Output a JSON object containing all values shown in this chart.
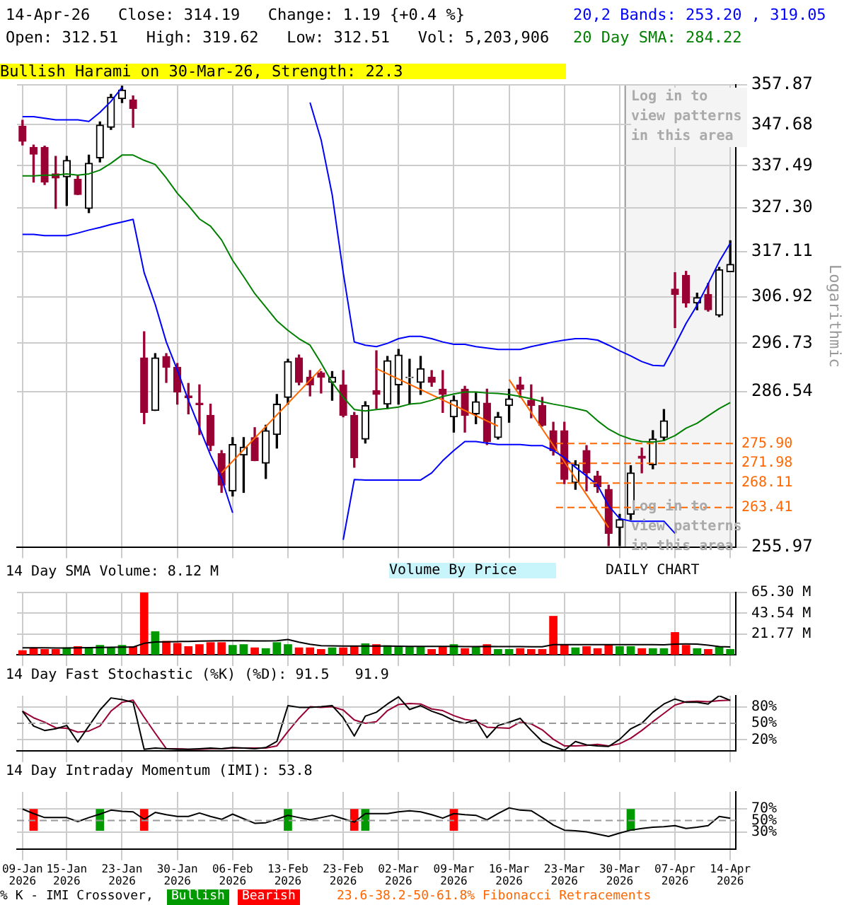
{
  "chart_data": [
    {
      "type": "candlestick",
      "title": "14-Apr-26   Close: 314.19   Change: 1.19 {+0.4 %}",
      "subtitle": "Open: 312.51   High: 319.62   Low: 312.51   Vol: 5,203,906",
      "ylabel": "Logarithmic",
      "categories": [
        "09-Jan 2026",
        null,
        null,
        null,
        "15-Jan 2026",
        null,
        null,
        null,
        null,
        "23-Jan 2026",
        null,
        null,
        null,
        null,
        "30-Jan 2026",
        null,
        null,
        null,
        null,
        "06-Feb 2026",
        null,
        null,
        null,
        null,
        "13-Feb 2026",
        null,
        null,
        null,
        null,
        "23-Feb 2026",
        null,
        null,
        null,
        null,
        "02-Mar 2026",
        null,
        null,
        null,
        null,
        "09-Mar 2026",
        null,
        null,
        null,
        null,
        "16-Mar 2026",
        null,
        null,
        null,
        null,
        "23-Mar 2026",
        null,
        null,
        null,
        null,
        "30-Mar 2026",
        null,
        null,
        null,
        null,
        "07-Apr 2026",
        null,
        null,
        null,
        null,
        "14-Apr 2026"
      ],
      "ohlc": [
        [
          347.3,
          348.8,
          342.6,
          343.5
        ],
        [
          342.0,
          342.6,
          333.5,
          340.3
        ],
        [
          342.0,
          342.3,
          332.9,
          333.5
        ],
        [
          335.5,
          339.8,
          327.2,
          334.5
        ],
        [
          334.8,
          339.8,
          327.9,
          338.8
        ],
        [
          334.2,
          335.2,
          330.5,
          330.5
        ],
        [
          327.2,
          340.1,
          326.2,
          338.1
        ],
        [
          339.4,
          348.4,
          338.4,
          347.6
        ],
        [
          347.0,
          355.4,
          346.5,
          354.7
        ],
        [
          354.3,
          357.5,
          353.3,
          356.5
        ],
        [
          354.0,
          355.0,
          347.0,
          351.8
        ],
        [
          293.6,
          299.2,
          279.9,
          282.2
        ],
        [
          282.6,
          294.5,
          282.6,
          293.6
        ],
        [
          293.9,
          294.5,
          288.4,
          291.6
        ],
        [
          291.6,
          292.4,
          283.9,
          286.4
        ],
        [
          285.6,
          288.2,
          281.9,
          285.2
        ],
        [
          284.1,
          287.9,
          277.7,
          283.8
        ],
        [
          281.6,
          283.9,
          274.5,
          275.5
        ],
        [
          273.9,
          274.5,
          266.3,
          267.7
        ],
        [
          266.6,
          277.1,
          265.6,
          275.7
        ],
        [
          273.6,
          277.1,
          266.3,
          275.2
        ],
        [
          277.1,
          279.1,
          272.5,
          272.5
        ],
        [
          272.0,
          279.6,
          269.0,
          278.5
        ],
        [
          277.7,
          285.9,
          275.0,
          283.9
        ],
        [
          285.3,
          293.3,
          283.9,
          292.8
        ],
        [
          293.6,
          294.2,
          287.9,
          288.4
        ],
        [
          289.5,
          290.9,
          285.6,
          287.9
        ],
        [
          290.4,
          290.7,
          286.2,
          289.5
        ],
        [
          288.4,
          290.7,
          284.7,
          289.5
        ],
        [
          287.9,
          290.9,
          281.3,
          281.6
        ],
        [
          281.6,
          282.2,
          271.2,
          273.1
        ],
        [
          276.8,
          284.4,
          276.0,
          283.6
        ],
        [
          286.7,
          295.1,
          283.0,
          285.9
        ],
        [
          283.9,
          293.9,
          283.0,
          293.0
        ],
        [
          287.9,
          295.4,
          283.9,
          294.2
        ],
        [
          289.4,
          293.3,
          283.9,
          289.5
        ],
        [
          288.4,
          293.9,
          285.9,
          291.3
        ],
        [
          289.5,
          290.9,
          287.6,
          288.4
        ],
        [
          287.0,
          290.9,
          282.2,
          285.9
        ],
        [
          281.3,
          285.6,
          278.2,
          284.7
        ],
        [
          287.0,
          287.6,
          278.2,
          281.6
        ],
        [
          281.9,
          286.2,
          279.9,
          284.4
        ],
        [
          284.1,
          287.0,
          275.7,
          276.3
        ],
        [
          277.1,
          282.2,
          276.8,
          281.3
        ],
        [
          283.6,
          287.0,
          280.2,
          285.0
        ],
        [
          287.9,
          289.5,
          285.3,
          287.0
        ],
        [
          284.7,
          287.9,
          281.1,
          283.6
        ],
        [
          283.6,
          285.3,
          279.4,
          279.6
        ],
        [
          278.5,
          280.2,
          273.6,
          274.5
        ],
        [
          278.5,
          280.2,
          268.0,
          268.8
        ],
        [
          268.2,
          272.5,
          266.9,
          271.7
        ],
        [
          274.5,
          275.5,
          266.6,
          270.1
        ],
        [
          269.5,
          270.4,
          266.3,
          267.4
        ],
        [
          266.9,
          267.7,
          256.2,
          258.5
        ],
        [
          259.6,
          262.1,
          256.2,
          261.1
        ],
        [
          262.1,
          271.5,
          261.1,
          270.1
        ],
        [
          273.4,
          275.0,
          270.1,
          273.0
        ],
        [
          271.7,
          278.5,
          270.9,
          276.8
        ],
        [
          277.1,
          282.8,
          276.5,
          280.5
        ],
        [
          308.6,
          312.3,
          300.1,
          307.4
        ],
        [
          311.7,
          312.6,
          304.6,
          305.5
        ],
        [
          305.5,
          307.7,
          304.0,
          306.7
        ],
        [
          307.4,
          309.9,
          303.7,
          304.0
        ],
        [
          302.8,
          313.5,
          302.5,
          313.0
        ],
        [
          312.51,
          319.62,
          312.51,
          314.19
        ]
      ],
      "series": [
        {
          "type": "line",
          "name": "20,2 Bands: 253.20 , 319.05",
          "color": "#0000ff",
          "values": [
            349.7,
            349.7,
            349.3,
            348.9,
            348.9,
            348.9,
            348.5,
            350.8,
            353.6,
            357.2,
            null,
            null,
            null,
            null,
            null,
            null,
            null,
            null,
            null,
            null,
            null,
            null,
            null,
            null,
            null,
            null,
            353.3,
            343.9,
            330.5,
            312.3,
            297.0,
            296.3,
            296.0,
            296.7,
            297.7,
            298.2,
            298.2,
            297.7,
            297.0,
            296.5,
            296.5,
            296.0,
            295.7,
            295.4,
            295.4,
            295.4,
            296.0,
            296.5,
            297.0,
            297.4,
            297.7,
            297.7,
            297.4,
            296.3,
            295.1,
            294.0,
            292.8,
            292.0,
            291.9,
            296.3,
            301.0,
            305.0,
            309.8,
            314.8,
            319.05
          ]
        },
        {
          "type": "line",
          "color": "#0000ff",
          "values": [
            321.1,
            321.1,
            320.8,
            320.8,
            320.8,
            321.4,
            322.1,
            322.7,
            323.4,
            324.0,
            324.6,
            312.3,
            305.2,
            297.0,
            291.0,
            284.7,
            279.1,
            273.6,
            269.0,
            262.4,
            null,
            null,
            null,
            null,
            null,
            null,
            null,
            null,
            null,
            257.3,
            268.8,
            268.7,
            268.7,
            268.7,
            268.7,
            268.7,
            268.7,
            270.1,
            272.5,
            274.5,
            276.3,
            276.3,
            276.0,
            275.7,
            275.7,
            275.7,
            275.5,
            275.5,
            274.5,
            273.1,
            271.2,
            269.5,
            267.7,
            263.7,
            261.3,
            260.8,
            260.8,
            260.8,
            260.8,
            258.5,
            null,
            null,
            null,
            null,
            null
          ]
        },
        {
          "type": "line",
          "name": "20 Day SMA: 284.22",
          "color": "#008000",
          "values": [
            335.0,
            335.0,
            335.2,
            335.2,
            335.5,
            335.2,
            335.5,
            336.4,
            338.1,
            340.1,
            340.1,
            338.8,
            337.8,
            334.5,
            330.8,
            327.9,
            324.7,
            323.0,
            319.8,
            315.1,
            311.4,
            307.6,
            304.6,
            301.6,
            299.5,
            297.7,
            296.3,
            292.5,
            288.4,
            285.3,
            282.8,
            282.5,
            282.8,
            283.0,
            283.3,
            283.9,
            284.1,
            284.7,
            285.5,
            286.0,
            286.4,
            286.4,
            286.2,
            286.1,
            285.9,
            285.5,
            285.0,
            284.4,
            283.9,
            283.5,
            283.0,
            282.5,
            280.5,
            278.8,
            277.6,
            276.8,
            276.3,
            276.2,
            276.5,
            277.5,
            279.0,
            280.0,
            281.5,
            283.0,
            284.22
          ]
        },
        {
          "type": "line",
          "color": "#ff6600",
          "values": [
            null,
            null,
            null,
            null,
            null,
            null,
            null,
            null,
            null,
            null,
            null,
            null,
            null,
            null,
            null,
            null,
            null,
            null,
            270.1,
            null,
            null,
            null,
            null,
            null,
            null,
            null,
            null,
            291.3,
            null,
            null,
            null,
            null,
            null,
            null,
            null,
            null,
            null,
            null,
            null,
            null,
            null,
            null,
            null,
            null,
            null,
            null,
            null,
            null,
            null,
            null,
            null,
            null,
            null,
            null,
            null,
            null,
            null,
            null,
            null,
            null,
            null,
            null,
            null,
            null,
            null
          ]
        },
        {
          "type": "line",
          "color": "#ff6600",
          "values": [
            null,
            null,
            null,
            null,
            null,
            null,
            null,
            null,
            null,
            null,
            null,
            null,
            null,
            null,
            null,
            null,
            null,
            null,
            null,
            null,
            null,
            null,
            null,
            null,
            null,
            null,
            null,
            null,
            null,
            null,
            null,
            null,
            291.3,
            null,
            null,
            null,
            null,
            null,
            null,
            null,
            null,
            null,
            null,
            279.4,
            null,
            null,
            null,
            null,
            null,
            null,
            null,
            null,
            null,
            null,
            null,
            null,
            null,
            null,
            null,
            null,
            null,
            null,
            null,
            null,
            null
          ]
        },
        {
          "type": "line",
          "color": "#ff6600",
          "values": [
            null,
            null,
            null,
            null,
            null,
            null,
            null,
            null,
            null,
            null,
            null,
            null,
            null,
            null,
            null,
            null,
            null,
            null,
            null,
            null,
            null,
            null,
            null,
            null,
            null,
            null,
            null,
            null,
            null,
            null,
            null,
            null,
            null,
            null,
            null,
            null,
            null,
            null,
            null,
            null,
            null,
            null,
            null,
            null,
            289.0,
            null,
            null,
            null,
            null,
            null,
            null,
            null,
            null,
            259.6,
            null,
            null,
            null,
            null,
            null,
            null,
            null,
            null,
            null,
            null,
            null
          ]
        }
      ],
      "ylim": [
        255.97,
        357.87
      ],
      "yticks": [
        255.97,
        286.54,
        296.73,
        306.92,
        317.11,
        {
          "value": 327.3,
          "label": "327.30"
        },
        337.49,
        347.68,
        357.87
      ],
      "log": true,
      "grid": true,
      "legend": "top right",
      "tick_labels": "y",
      "ref_lines": [
        {
          "axis": "y",
          "value": 275.9,
          "label": "275.90",
          "color": "#ff6600",
          "line_style": "dashed"
        },
        {
          "axis": "y",
          "value": 271.98,
          "label": "271.98",
          "color": "#ff6600",
          "line_style": "dashed"
        },
        {
          "axis": "y",
          "value": 268.11,
          "label": "268.11",
          "color": "#ff6600",
          "line_style": "dashed"
        },
        {
          "axis": "y",
          "value": 263.41,
          "label": "263.41",
          "color": "#ff6600",
          "line_style": "dashed"
        }
      ],
      "bands": [
        {
          "axis": "x",
          "from": "30-Mar 2026",
          "to": "14-Apr 2026",
          "color": "#f4f4f4"
        }
      ],
      "annotations": [
        "Bullish Harami on 30-Mar-26, Strength: 22.3",
        "Log in to view patterns in this area",
        "Log in to view patterns in this area",
        "DAILY CHART",
        "23.6-38.2-50-61.8% Fibonacci Retracements"
      ]
    },
    {
      "type": "bar",
      "title": "14 Day SMA Volume: 8.12 M",
      "categories": [
        "09-Jan 2026",
        null,
        null,
        null,
        "15-Jan 2026",
        null,
        null,
        null,
        null,
        "23-Jan 2026",
        null,
        null,
        null,
        null,
        "30-Jan 2026",
        null,
        null,
        null,
        null,
        "06-Feb 2026",
        null,
        null,
        null,
        null,
        "13-Feb 2026",
        null,
        null,
        null,
        null,
        "23-Feb 2026",
        null,
        null,
        null,
        null,
        "02-Mar 2026",
        null,
        null,
        null,
        null,
        "09-Mar 2026",
        null,
        null,
        null,
        null,
        "16-Mar 2026",
        null,
        null,
        null,
        null,
        "23-Mar 2026",
        null,
        null,
        null,
        null,
        "30-Mar 2026",
        null,
        null,
        null,
        null,
        "07-Apr 2026",
        null,
        null,
        null,
        null,
        "14-Apr 2026"
      ],
      "series": [
        {
          "type": "bar",
          "values": [
            4.7,
            7.6,
            5.9,
            5.9,
            7.6,
            8.9,
            7.6,
            10.2,
            7.6,
            10.2,
            8.9,
            65.3,
            24.6,
            14.4,
            12.3,
            8.9,
            11.0,
            13.1,
            13.1,
            10.2,
            11.0,
            7.6,
            6.8,
            13.1,
            11.0,
            7.6,
            7.6,
            5.9,
            7.6,
            7.6,
            8.9,
            11.9,
            11.0,
            9.8,
            8.1,
            8.1,
            8.1,
            5.9,
            8.1,
            11.0,
            6.8,
            8.1,
            11.0,
            5.9,
            5.9,
            6.8,
            5.9,
            5.9,
            40.7,
            11.0,
            7.6,
            8.9,
            6.8,
            11.0,
            8.9,
            8.9,
            6.8,
            6.8,
            6.8,
            23.7,
            10.2,
            6.8,
            5.9,
            8.1,
            5.9
          ],
          "colors": [
            "#ff0000",
            "#ff0000",
            "#ff0000",
            "#ff0000",
            "#009900",
            "#ff0000",
            "#009900",
            "#009900",
            "#009900",
            "#009900",
            "#ff0000",
            "#ff0000",
            "#009900",
            "#ff0000",
            "#ff0000",
            "#ff0000",
            "#ff0000",
            "#ff0000",
            "#ff0000",
            "#009900",
            "#009900",
            "#ff0000",
            "#009900",
            "#009900",
            "#009900",
            "#ff0000",
            "#ff0000",
            "#ff0000",
            "#009900",
            "#ff0000",
            "#ff0000",
            "#009900",
            "#ff0000",
            "#009900",
            "#009900",
            "#009900",
            "#009900",
            "#ff0000",
            "#ff0000",
            "#009900",
            "#ff0000",
            "#009900",
            "#ff0000",
            "#009900",
            "#009900",
            "#ff0000",
            "#ff0000",
            "#ff0000",
            "#ff0000",
            "#ff0000",
            "#009900",
            "#ff0000",
            "#ff0000",
            "#ff0000",
            "#009900",
            "#009900",
            "#ff0000",
            "#009900",
            "#009900",
            "#ff0000",
            "#ff0000",
            "#009900",
            "#ff0000",
            "#009900",
            "#009900"
          ]
        },
        {
          "type": "line",
          "color": "#000000",
          "values": [
            7.2,
            7.3,
            7.2,
            7.0,
            7.1,
            7.3,
            7.4,
            7.6,
            7.7,
            7.9,
            8.0,
            12.0,
            13.3,
            13.6,
            13.8,
            13.9,
            14.2,
            14.5,
            14.6,
            14.6,
            14.7,
            14.5,
            14.4,
            14.6,
            16.0,
            13.2,
            11.0,
            9.5,
            9.2,
            9.0,
            9.0,
            9.1,
            9.1,
            9.0,
            8.9,
            8.8,
            8.8,
            8.7,
            8.8,
            8.8,
            8.6,
            8.6,
            8.7,
            8.5,
            8.5,
            8.5,
            8.4,
            8.3,
            10.5,
            10.6,
            10.6,
            10.6,
            10.5,
            10.6,
            10.6,
            10.6,
            10.5,
            10.5,
            10.4,
            11.2,
            11.3,
            11.2,
            10.0,
            8.6,
            8.12
          ]
        }
      ],
      "ylim": [
        0,
        65.3
      ],
      "yticks": [
        {
          "value": 21.77,
          "label": "21.77 M"
        },
        {
          "value": 43.54,
          "label": "43.54 M"
        },
        {
          "value": 65.3,
          "label": "65.30 M"
        }
      ],
      "grid": true,
      "tick_labels": "y",
      "annotations": [
        "Volume By Price"
      ]
    },
    {
      "type": "line",
      "title": "14 Day Fast Stochastic (%K) (%D): 91.5   91.9",
      "categories": [
        "09-Jan 2026",
        null,
        null,
        null,
        "15-Jan 2026",
        null,
        null,
        null,
        null,
        "23-Jan 2026",
        null,
        null,
        null,
        null,
        "30-Jan 2026",
        null,
        null,
        null,
        null,
        "06-Feb 2026",
        null,
        null,
        null,
        null,
        "13-Feb 2026",
        null,
        null,
        null,
        null,
        "23-Feb 2026",
        null,
        null,
        null,
        null,
        "02-Mar 2026",
        null,
        null,
        null,
        null,
        "09-Mar 2026",
        null,
        null,
        null,
        null,
        "16-Mar 2026",
        null,
        null,
        null,
        null,
        "23-Mar 2026",
        null,
        null,
        null,
        null,
        "30-Mar 2026",
        null,
        null,
        null,
        null,
        "07-Apr 2026",
        null,
        null,
        null,
        null,
        "14-Apr 2026"
      ],
      "series": [
        {
          "color": "#000000",
          "values": [
            72,
            45,
            37,
            40,
            46,
            16,
            45,
            74,
            96,
            93,
            88,
            3,
            5,
            4,
            3,
            3,
            4,
            5,
            4,
            6,
            5,
            4,
            6,
            17,
            82,
            79,
            79,
            80,
            82,
            60,
            27,
            63,
            70,
            85,
            98,
            75,
            82,
            72,
            65,
            55,
            50,
            56,
            24,
            46,
            52,
            59,
            37,
            17,
            8,
            1,
            17,
            11,
            9,
            8,
            21,
            40,
            50,
            70,
            85,
            94,
            88,
            88,
            85,
            100,
            91.5
          ]
        },
        {
          "color": "#990033",
          "values": [
            72,
            60,
            52,
            42,
            41,
            34,
            36,
            45,
            72,
            88,
            92,
            61,
            32,
            4,
            4,
            3,
            3,
            4,
            4,
            5,
            5,
            5,
            5,
            9,
            35,
            59,
            80,
            79,
            80,
            74,
            56,
            50,
            53,
            73,
            84,
            86,
            85,
            76,
            73,
            64,
            57,
            54,
            43,
            42,
            41,
            52,
            49,
            38,
            21,
            9,
            9,
            10,
            12,
            9,
            13,
            23,
            37,
            53,
            68,
            83,
            89,
            90,
            89,
            91,
            91.9
          ]
        }
      ],
      "ylim": [
        0,
        100
      ],
      "yticks": [
        {
          "value": 20,
          "label": "20%"
        },
        {
          "value": 50,
          "label": "50%"
        },
        {
          "value": 80,
          "label": "80%"
        }
      ],
      "grid": true,
      "tick_labels": "y",
      "ref_lines": [
        {
          "axis": "y",
          "value": 50,
          "color": "#999999",
          "line_style": "dashed"
        }
      ]
    },
    {
      "type": "line",
      "title": "14 Day Intraday Momentum (IMI): 53.8",
      "categories": [
        "09-Jan 2026",
        null,
        null,
        null,
        "15-Jan 2026",
        null,
        null,
        null,
        null,
        "23-Jan 2026",
        null,
        null,
        null,
        null,
        "30-Jan 2026",
        null,
        null,
        null,
        null,
        "06-Feb 2026",
        null,
        null,
        null,
        null,
        "13-Feb 2026",
        null,
        null,
        null,
        null,
        "23-Feb 2026",
        null,
        null,
        null,
        null,
        "02-Mar 2026",
        null,
        null,
        null,
        null,
        "09-Mar 2026",
        null,
        null,
        null,
        null,
        "16-Mar 2026",
        null,
        null,
        null,
        null,
        "23-Mar 2026",
        null,
        null,
        null,
        null,
        "30-Mar 2026",
        null,
        null,
        null,
        null,
        "07-Apr 2026",
        null,
        null,
        null,
        null,
        "14-Apr 2026"
      ],
      "series": [
        {
          "type": "bar",
          "name": "Bullish",
          "color": "#009900",
          "values": [
            null,
            null,
            null,
            null,
            null,
            null,
            null,
            38,
            null,
            null,
            null,
            null,
            null,
            null,
            null,
            null,
            null,
            null,
            null,
            null,
            null,
            null,
            null,
            null,
            38,
            null,
            null,
            null,
            null,
            null,
            null,
            38,
            null,
            null,
            null,
            null,
            null,
            null,
            null,
            null,
            null,
            null,
            null,
            null,
            null,
            null,
            null,
            null,
            null,
            null,
            null,
            null,
            null,
            null,
            null,
            38,
            null,
            null,
            null,
            null,
            null,
            null,
            null,
            null,
            null
          ],
          "base": [
            null,
            null,
            null,
            null,
            null,
            null,
            null,
            32,
            null,
            null,
            null,
            null,
            null,
            null,
            null,
            null,
            null,
            null,
            null,
            null,
            null,
            null,
            null,
            null,
            32,
            null,
            null,
            null,
            null,
            null,
            null,
            32,
            null,
            null,
            null,
            null,
            null,
            null,
            null,
            null,
            null,
            null,
            null,
            null,
            null,
            null,
            null,
            null,
            null,
            null,
            null,
            null,
            null,
            null,
            null,
            32,
            null,
            null,
            null,
            null,
            null,
            null,
            null,
            null,
            null
          ]
        },
        {
          "type": "bar",
          "name": "Bearish",
          "color": "#ff0000",
          "values": [
            null,
            38,
            null,
            null,
            null,
            null,
            null,
            null,
            null,
            null,
            null,
            38,
            null,
            null,
            null,
            null,
            null,
            null,
            null,
            null,
            null,
            null,
            null,
            null,
            null,
            null,
            null,
            null,
            null,
            null,
            38,
            null,
            null,
            null,
            null,
            null,
            null,
            null,
            null,
            38,
            null,
            null,
            null,
            null,
            null,
            null,
            null,
            null,
            null,
            null,
            null,
            null,
            null,
            null,
            null,
            null,
            null,
            null,
            null,
            null,
            null,
            null,
            null,
            null,
            null
          ],
          "base": [
            null,
            32,
            null,
            null,
            null,
            null,
            null,
            null,
            null,
            null,
            null,
            32,
            null,
            null,
            null,
            null,
            null,
            null,
            null,
            null,
            null,
            null,
            null,
            null,
            null,
            null,
            null,
            null,
            null,
            null,
            32,
            null,
            null,
            null,
            null,
            null,
            null,
            null,
            null,
            32,
            null,
            null,
            null,
            null,
            null,
            null,
            null,
            null,
            null,
            null,
            null,
            null,
            null,
            null,
            null,
            null,
            null,
            null,
            null,
            null,
            null,
            null,
            null,
            null,
            null
          ]
        },
        {
          "type": "line",
          "color": "#000000",
          "values": [
            70,
            62,
            55,
            55,
            55,
            48,
            55,
            61,
            68,
            66,
            65,
            52,
            64,
            60,
            57,
            57,
            63,
            57,
            52,
            61,
            53,
            45,
            46,
            52,
            59,
            55,
            51,
            55,
            59,
            53,
            47,
            62,
            62,
            62,
            65,
            67,
            65,
            60,
            54,
            62,
            60,
            59,
            51,
            62,
            72,
            68,
            67,
            55,
            42,
            33,
            32,
            30,
            26,
            22,
            28,
            33,
            36,
            38,
            39,
            41,
            36,
            38,
            41,
            57,
            53.8
          ]
        }
      ],
      "ylim": [
        0,
        100
      ],
      "yticks": [
        {
          "value": 30,
          "label": "30%"
        },
        {
          "value": 50,
          "label": "50%"
        },
        {
          "value": 70,
          "label": "70%"
        }
      ],
      "grid": true,
      "legend": "bottom",
      "ref_lines": [
        {
          "axis": "y",
          "value": 50,
          "color": "#999999",
          "line_style": "dashed"
        }
      ],
      "annotations": [
        "% K - IMI Crossover,"
      ]
    }
  ]
}
